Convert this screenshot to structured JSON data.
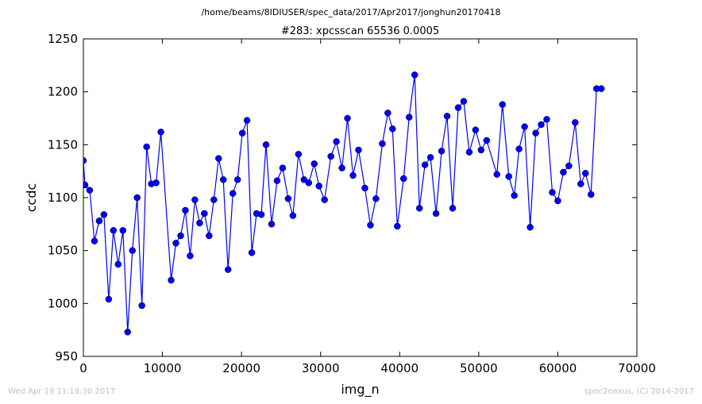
{
  "header": {
    "path": "/home/beams/8IDIUSER/spec_data/2017/Apr2017/jonghun20170418"
  },
  "footer": {
    "timestamp": "Wed Apr 19 11:18:30 2017",
    "credit": "spec2nexus, (C) 2014-2017"
  },
  "chart_data": {
    "type": "line",
    "title": "#283: xpcsscan 65536 0.0005",
    "xlabel": "img_n",
    "ylabel": "ccdc",
    "xlim": [
      0,
      70000
    ],
    "ylim": [
      950,
      1250
    ],
    "xticks": [
      0,
      10000,
      20000,
      30000,
      40000,
      50000,
      60000,
      70000
    ],
    "yticks": [
      950,
      1000,
      1050,
      1100,
      1150,
      1200,
      1250
    ],
    "grid": false,
    "marker": "circle",
    "color": "#0000ff",
    "series": [
      {
        "x": [
          0,
          200,
          800,
          1400,
          2000,
          2600,
          3200,
          3800,
          4400,
          5000,
          5600,
          6200,
          6800,
          7400,
          8000,
          8600,
          9200,
          9800,
          11100,
          11700,
          12300,
          12900,
          13500,
          14100,
          14700,
          15300,
          15900,
          16500,
          17100,
          17700,
          18300,
          18900,
          19500,
          20100,
          20700,
          21300,
          21900,
          22500,
          23100,
          23800,
          24500,
          25200,
          25900,
          26500,
          27200,
          27900,
          28500,
          29200,
          29800,
          30500,
          31300,
          32000,
          32700,
          33400,
          34100,
          34800,
          35600,
          36300,
          37000,
          37800,
          38500,
          39100,
          39700,
          40500,
          41200,
          41900,
          42500,
          43200,
          43900,
          44600,
          45300,
          46000,
          46700,
          47400,
          48100,
          48800,
          49600,
          50300,
          51000,
          52300,
          53000,
          53800,
          54500,
          55100,
          55800,
          56500,
          57200,
          57900,
          58600,
          59300,
          60000,
          60700,
          61400,
          62200,
          62900,
          63500,
          64200,
          64900,
          65500
        ],
        "y": [
          1135,
          1112,
          1107,
          1059,
          1078,
          1084,
          1004,
          1069,
          1037,
          1069,
          973,
          1050,
          1100,
          998,
          1148,
          1113,
          1114,
          1162,
          1022,
          1057,
          1064,
          1088,
          1045,
          1098,
          1076,
          1085,
          1064,
          1098,
          1137,
          1117,
          1032,
          1104,
          1117,
          1161,
          1173,
          1048,
          1085,
          1084,
          1150,
          1075,
          1116,
          1128,
          1099,
          1083,
          1141,
          1117,
          1114,
          1132,
          1111,
          1098,
          1139,
          1153,
          1128,
          1175,
          1121,
          1145,
          1109,
          1074,
          1099,
          1151,
          1180,
          1165,
          1073,
          1118,
          1176,
          1216,
          1090,
          1131,
          1138,
          1085,
          1144,
          1177,
          1090,
          1185,
          1191,
          1143,
          1164,
          1145,
          1154,
          1122,
          1188,
          1120,
          1102,
          1146,
          1167,
          1072,
          1161,
          1169,
          1174,
          1105,
          1097,
          1124,
          1130,
          1171,
          1113,
          1123,
          1103,
          1203,
          1203
        ]
      }
    ]
  }
}
